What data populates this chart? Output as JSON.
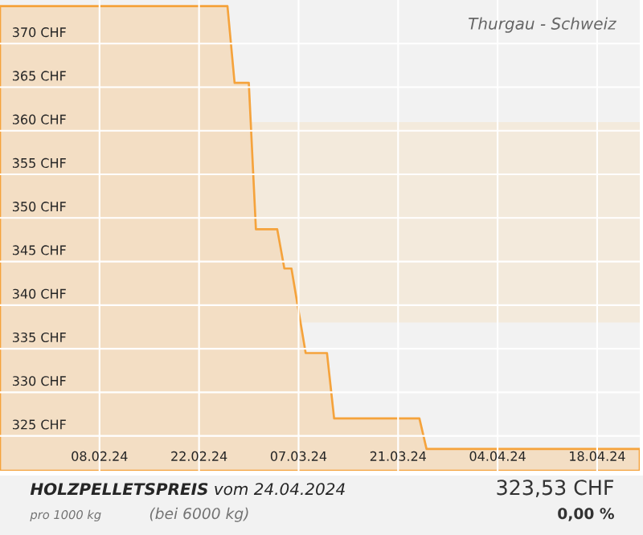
{
  "chart_data": {
    "type": "area",
    "title": "**HOLZPELLETSPREIS** vom 24.04.2024",
    "subtitle": "Thurgau - Schweiz",
    "annotations": [
      "pro 1000 kg",
      "(bei 6000 kg)",
      "323,53 CHF",
      "0,00 %"
    ],
    "x": [
      "2024-01-25",
      "2024-02-26",
      "2024-02-27",
      "2024-02-29",
      "2024-03-01",
      "2024-03-04",
      "2024-03-05",
      "2024-03-06",
      "2024-03-08",
      "2024-03-11",
      "2024-03-12",
      "2024-03-24",
      "2024-03-25",
      "2024-04-24"
    ],
    "series": [
      {
        "color": "#f5a33c",
        "values": [
          374.3,
          374.3,
          365.5,
          365.5,
          348.7,
          348.7,
          344.2,
          344.2,
          334.5,
          334.5,
          327.0,
          327.0,
          323.5,
          323.5
        ]
      }
    ],
    "xlim": [
      "2024-01-25",
      "2024-04-24"
    ],
    "xticks": [
      {
        "value": "2024-02-08",
        "label": "08.02.24"
      },
      {
        "value": "2024-02-22",
        "label": "22.02.24"
      },
      {
        "value": "2024-03-07",
        "label": "07.03.24"
      },
      {
        "value": "2024-03-21",
        "label": "21.03.24"
      },
      {
        "value": "2024-04-04",
        "label": "04.04.24"
      },
      {
        "value": "2024-04-18",
        "label": "18.04.24"
      }
    ],
    "ylim": [
      321,
      375
    ],
    "yticks": [
      {
        "value": 325,
        "label": "325 CHF"
      },
      {
        "value": 330,
        "label": "330 CHF"
      },
      {
        "value": 335,
        "label": "335 CHF"
      },
      {
        "value": 340,
        "label": "340 CHF"
      },
      {
        "value": 345,
        "label": "345 CHF"
      },
      {
        "value": 350,
        "label": "350 CHF"
      },
      {
        "value": 355,
        "label": "355 CHF"
      },
      {
        "value": 360,
        "label": "360 CHF"
      },
      {
        "value": 365,
        "label": "365 CHF"
      },
      {
        "value": 370,
        "label": "370 CHF"
      }
    ],
    "bands": [
      {
        "axis": "y",
        "from": 338,
        "to": 361,
        "color": "#f3eadc"
      }
    ],
    "grid": true,
    "marker": "none",
    "line_style": "solid"
  }
}
